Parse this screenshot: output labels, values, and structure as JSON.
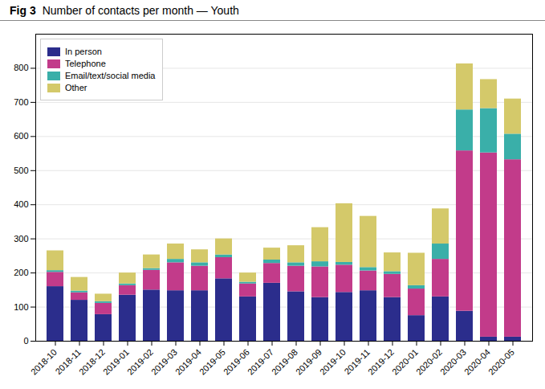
{
  "chart_data": {
    "type": "bar",
    "stacked": true,
    "title": "Fig 3",
    "subtitle": "Number of contacts per month — Youth",
    "categories": [
      "2018-10",
      "2018-11",
      "2018-12",
      "2019-01",
      "2019-02",
      "2019-03",
      "2019-04",
      "2019-05",
      "2019-06",
      "2019-07",
      "2019-08",
      "2019-09",
      "2019-10",
      "2019-11",
      "2019-12",
      "2020-01",
      "2020-02",
      "2020-03",
      "2020-04",
      "2020-05"
    ],
    "series": [
      {
        "name": "In person",
        "color": "#2b2d8c",
        "values": [
          160,
          120,
          78,
          135,
          150,
          148,
          148,
          183,
          130,
          170,
          145,
          128,
          143,
          148,
          128,
          75,
          130,
          88,
          12,
          12
        ]
      },
      {
        "name": "Telephone",
        "color": "#c23b8a",
        "values": [
          42,
          22,
          33,
          28,
          58,
          82,
          72,
          62,
          38,
          58,
          75,
          90,
          80,
          58,
          68,
          78,
          110,
          470,
          540,
          520
        ]
      },
      {
        "name": "Email/text/social media",
        "color": "#3aafa9",
        "values": [
          5,
          5,
          5,
          5,
          5,
          10,
          10,
          8,
          5,
          10,
          10,
          15,
          8,
          10,
          8,
          10,
          45,
          120,
          130,
          75
        ]
      },
      {
        "name": "Other",
        "color": "#d4c96a",
        "values": [
          58,
          40,
          22,
          32,
          40,
          45,
          38,
          47,
          27,
          35,
          50,
          100,
          172,
          150,
          55,
          95,
          103,
          135,
          85,
          103
        ]
      }
    ],
    "ylim": [
      0,
      900
    ],
    "yticks": [
      0,
      100,
      200,
      300,
      400,
      500,
      600,
      700,
      800
    ],
    "grid": true,
    "legend": "upper left"
  }
}
